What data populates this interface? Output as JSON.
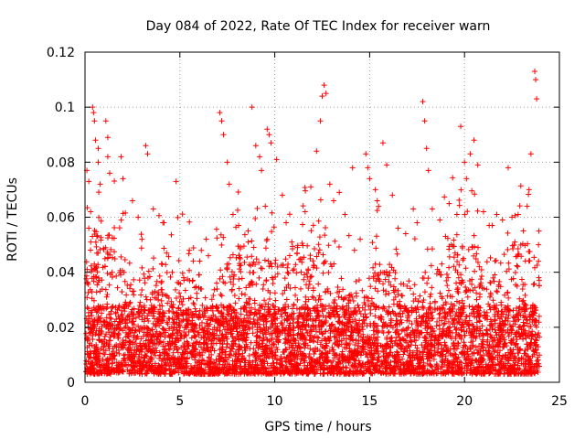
{
  "chart_data": {
    "type": "scatter",
    "title": "Day 084 of 2022, Rate Of TEC Index for receiver warn",
    "xlabel": "GPS time / hours",
    "ylabel": "ROTI / TECUs",
    "xlim": [
      0,
      25
    ],
    "ylim": [
      0,
      0.12
    ],
    "xticks": [
      0,
      5,
      10,
      15,
      20,
      25
    ],
    "xtick_labels": [
      "0",
      "5",
      "10",
      "15",
      "20",
      "25"
    ],
    "yticks": [
      0,
      0.02,
      0.04,
      0.06,
      0.08,
      0.1,
      0.12
    ],
    "ytick_labels": [
      "0",
      "0.02",
      "0.04",
      "0.06",
      "0.08",
      "0.1",
      "0.12"
    ],
    "grid": true,
    "marker": "plus",
    "color": "#ff0000",
    "series": [
      {
        "name": "ROTI",
        "points": [
          [
            0.1,
            0.077
          ],
          [
            0.2,
            0.073
          ],
          [
            0.2,
            0.056
          ],
          [
            0.3,
            0.062
          ],
          [
            0.4,
            0.1
          ],
          [
            0.45,
            0.098
          ],
          [
            0.5,
            0.095
          ],
          [
            0.55,
            0.088
          ],
          [
            0.7,
            0.085
          ],
          [
            0.7,
            0.08
          ],
          [
            0.8,
            0.072
          ],
          [
            1.1,
            0.095
          ],
          [
            1.2,
            0.089
          ],
          [
            1.2,
            0.082
          ],
          [
            1.3,
            0.076
          ],
          [
            1.9,
            0.082
          ],
          [
            2.0,
            0.074
          ],
          [
            2.5,
            0.066
          ],
          [
            2.8,
            0.06
          ],
          [
            3.0,
            0.052
          ],
          [
            3.2,
            0.086
          ],
          [
            3.3,
            0.083
          ],
          [
            3.6,
            0.063
          ],
          [
            4.1,
            0.058
          ],
          [
            4.3,
            0.047
          ],
          [
            4.8,
            0.073
          ],
          [
            5.2,
            0.038
          ],
          [
            5.5,
            0.048
          ],
          [
            6.0,
            0.039
          ],
          [
            6.5,
            0.046
          ],
          [
            7.1,
            0.098
          ],
          [
            7.2,
            0.095
          ],
          [
            7.3,
            0.09
          ],
          [
            7.5,
            0.08
          ],
          [
            7.6,
            0.072
          ],
          [
            7.8,
            0.061
          ],
          [
            8.1,
            0.057
          ],
          [
            8.6,
            0.055
          ],
          [
            8.8,
            0.1
          ],
          [
            9.0,
            0.086
          ],
          [
            9.2,
            0.082
          ],
          [
            9.3,
            0.077
          ],
          [
            9.5,
            0.064
          ],
          [
            9.6,
            0.092
          ],
          [
            9.7,
            0.09
          ],
          [
            9.8,
            0.087
          ],
          [
            10.1,
            0.081
          ],
          [
            10.4,
            0.068
          ],
          [
            10.6,
            0.058
          ],
          [
            10.9,
            0.051
          ],
          [
            11.2,
            0.049
          ],
          [
            11.6,
            0.062
          ],
          [
            11.9,
            0.071
          ],
          [
            12.2,
            0.084
          ],
          [
            12.4,
            0.095
          ],
          [
            12.5,
            0.104
          ],
          [
            12.6,
            0.108
          ],
          [
            12.7,
            0.105
          ],
          [
            12.9,
            0.072
          ],
          [
            13.1,
            0.066
          ],
          [
            13.4,
            0.069
          ],
          [
            13.7,
            0.061
          ],
          [
            14.1,
            0.078
          ],
          [
            14.2,
            0.048
          ],
          [
            14.5,
            0.052
          ],
          [
            14.8,
            0.083
          ],
          [
            14.9,
            0.078
          ],
          [
            15.0,
            0.074
          ],
          [
            15.3,
            0.07
          ],
          [
            15.4,
            0.066
          ],
          [
            15.7,
            0.087
          ],
          [
            15.9,
            0.079
          ],
          [
            16.2,
            0.068
          ],
          [
            16.5,
            0.056
          ],
          [
            16.9,
            0.054
          ],
          [
            17.3,
            0.063
          ],
          [
            17.5,
            0.058
          ],
          [
            17.8,
            0.102
          ],
          [
            17.9,
            0.095
          ],
          [
            18.0,
            0.085
          ],
          [
            18.1,
            0.077
          ],
          [
            18.3,
            0.063
          ],
          [
            18.7,
            0.059
          ],
          [
            19.0,
            0.053
          ],
          [
            19.3,
            0.05
          ],
          [
            19.6,
            0.061
          ],
          [
            19.8,
            0.093
          ],
          [
            20.0,
            0.08
          ],
          [
            20.1,
            0.074
          ],
          [
            20.3,
            0.083
          ],
          [
            20.5,
            0.088
          ],
          [
            20.7,
            0.079
          ],
          [
            21.0,
            0.062
          ],
          [
            21.3,
            0.057
          ],
          [
            21.7,
            0.061
          ],
          [
            22.0,
            0.059
          ],
          [
            22.3,
            0.078
          ],
          [
            22.5,
            0.06
          ],
          [
            22.8,
            0.042
          ],
          [
            23.1,
            0.055
          ],
          [
            23.3,
            0.064
          ],
          [
            23.4,
            0.07
          ],
          [
            23.5,
            0.083
          ],
          [
            23.7,
            0.113
          ],
          [
            23.75,
            0.11
          ],
          [
            23.8,
            0.103
          ],
          [
            23.9,
            0.044
          ],
          [
            23.9,
            0.05
          ]
        ]
      }
    ]
  }
}
